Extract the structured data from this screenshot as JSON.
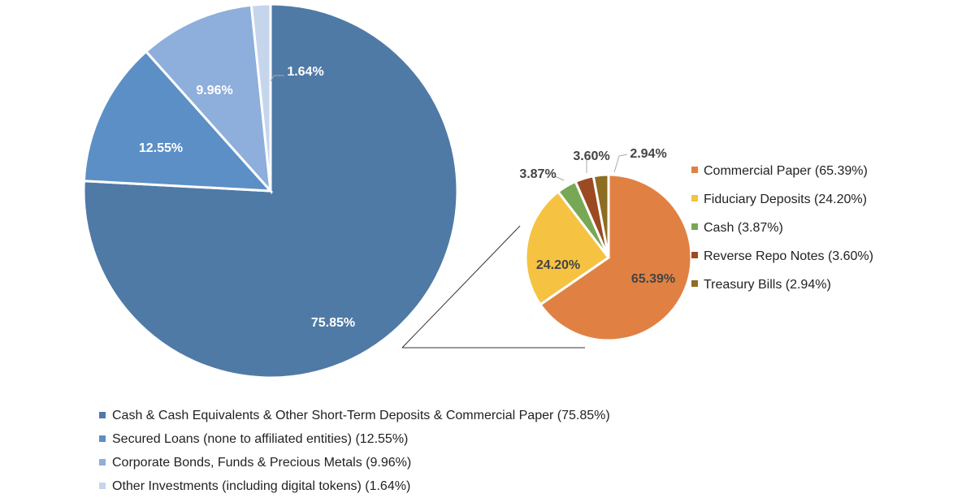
{
  "chart_data": [
    {
      "type": "pie",
      "start_angle": "12 o'clock, clockwise",
      "legend_position": "bottom",
      "slices": [
        {
          "name": "Cash & Cash Equivalents & Other Short-Term Deposits & Commercial Paper (75.85%)",
          "value": 75.85,
          "label": "75.85%",
          "color": "#4f7aa6"
        },
        {
          "name": "Secured Loans (none to affiliated entities) (12.55%)",
          "value": 12.55,
          "label": "12.55%",
          "color": "#5b8fc6"
        },
        {
          "name": "Corporate Bonds, Funds & Precious Metals (9.96%)",
          "value": 9.96,
          "label": "9.96%",
          "color": "#8eaedb"
        },
        {
          "name": "Other Investments (including digital tokens) (1.64%)",
          "value": 1.64,
          "label": "1.64%",
          "color": "#c5d5ec"
        }
      ]
    },
    {
      "type": "pie",
      "start_angle": "12 o'clock, clockwise",
      "legend_position": "right",
      "breakdown_of": "Cash & Cash Equivalents & Other Short-Term Deposits & Commercial Paper (75.85%)",
      "slices": [
        {
          "name": "Commercial Paper (65.39%)",
          "value": 65.39,
          "label": "65.39%",
          "color": "#e08143"
        },
        {
          "name": "Fiduciary Deposits (24.20%)",
          "value": 24.2,
          "label": "24.20%",
          "color": "#f5c242"
        },
        {
          "name": "Cash (3.87%)",
          "value": 3.87,
          "label": "3.87%",
          "color": "#78a855"
        },
        {
          "name": "Reverse Repo Notes (3.60%)",
          "value": 3.6,
          "label": "3.60%",
          "color": "#9b4a22"
        },
        {
          "name": "Treasury Bills (2.94%)",
          "value": 2.94,
          "label": "2.94%",
          "color": "#8c6d22"
        }
      ]
    }
  ]
}
